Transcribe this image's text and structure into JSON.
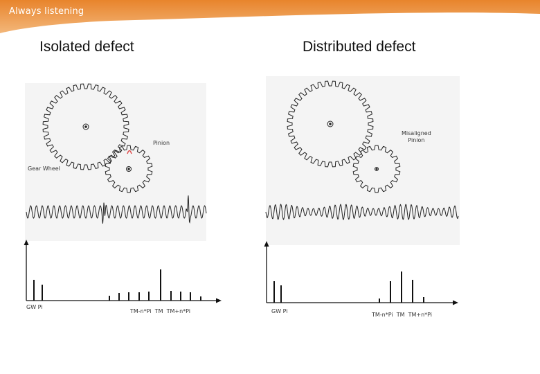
{
  "banner": {
    "text": "Always listening",
    "color": "#e8842c"
  },
  "left": {
    "title": "Isolated defect",
    "pinion_label": "Pinion",
    "wheel_label": "Gear Wheel",
    "spectrum": {
      "left_label": "GW Pi",
      "right_label": "TM-n*Pi  TM  TM+n*Pi"
    }
  },
  "right": {
    "title": "Distributed defect",
    "pinion_label": "Misaligned\nPinion",
    "spectrum": {
      "left_label": "GW Pi",
      "right_label": "TM-n*Pi  TM  TM+n*Pi"
    }
  }
}
